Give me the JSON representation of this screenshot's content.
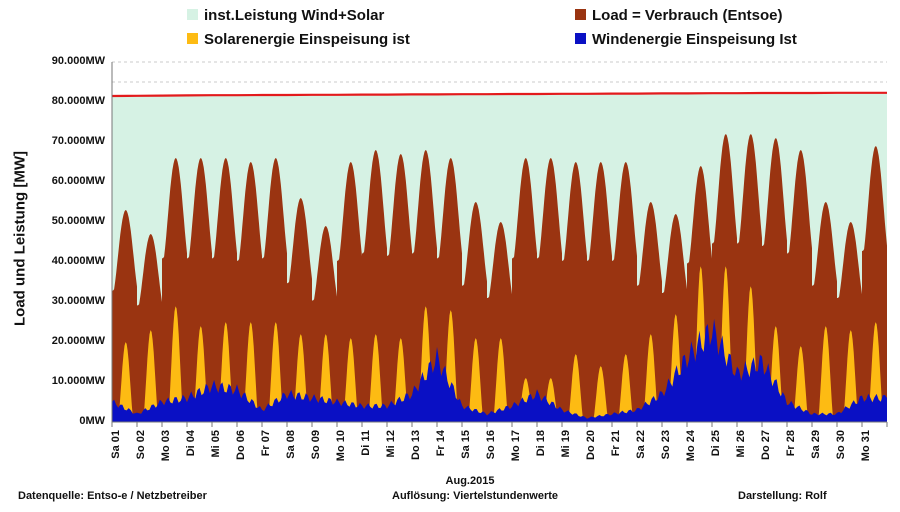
{
  "legend": [
    {
      "label": "inst.Leistung Wind+Solar",
      "color": "#d6f2e4"
    },
    {
      "label": "Load =  Verbrauch (Entsoe)",
      "color": "#9a3411"
    },
    {
      "label": "Solarenergie Einspeisung ist",
      "color": "#fdbb13"
    },
    {
      "label": "Windenergie Einspeisung Ist",
      "color": "#0a10c4"
    }
  ],
  "footer": {
    "source": "Datenquelle:  Entso-e  / Netzbetreiber",
    "resolution": "Auflösung:  Viertelstundenwerte",
    "author": "Darstellung: Rolf"
  },
  "chart_data": {
    "type": "area",
    "title": "",
    "xlabel": "Aug.2015",
    "ylabel": "Load und Leistung  [MW]",
    "ylim": [
      0,
      90000
    ],
    "yticks": [
      "0MW",
      "10.000MW",
      "20.000MW",
      "30.000MW",
      "40.000MW",
      "50.000MW",
      "60.000MW",
      "70.000MW",
      "80.000MW",
      "90.000MW"
    ],
    "categories": [
      "Sa 01",
      "So 02",
      "Mo 03",
      "Di 04",
      "Mi 05",
      "Do 06",
      "Fr 07",
      "Sa 08",
      "So 09",
      "Mo 10",
      "Di 11",
      "Mi 12",
      "Do 13",
      "Fr 14",
      "Sa 15",
      "So 16",
      "Mo 17",
      "Di 18",
      "Mi 19",
      "Do 20",
      "Fr 21",
      "Sa 22",
      "So 23",
      "Mo 24",
      "Di 25",
      "Mi 26",
      "Do 27",
      "Fr 28",
      "Sa 29",
      "So 30",
      "Mo 31"
    ],
    "series": [
      {
        "name": "inst.Leistung Wind+Solar",
        "values": [
          81500,
          81550,
          81600,
          81650,
          81700,
          81700,
          81750,
          81750,
          81800,
          81800,
          81850,
          81850,
          81900,
          81900,
          81950,
          81950,
          82000,
          82000,
          82050,
          82050,
          82100,
          82100,
          82150,
          82150,
          82200,
          82200,
          82250,
          82250,
          82250,
          82300,
          82300
        ]
      },
      {
        "name": "Load =  Verbrauch (Entsoe)",
        "values": [
          53000,
          47000,
          66000,
          66000,
          66000,
          65000,
          66000,
          56000,
          49000,
          65000,
          68000,
          67000,
          68000,
          66000,
          55000,
          50000,
          66000,
          66000,
          65000,
          65000,
          65000,
          55000,
          52000,
          64000,
          72000,
          72000,
          71000,
          68000,
          55000,
          50000,
          69000
        ]
      },
      {
        "name": "Solarenergie Einspeisung ist",
        "values": [
          20000,
          23000,
          29000,
          24000,
          25000,
          25000,
          25000,
          22000,
          22000,
          21000,
          22000,
          21000,
          29000,
          28000,
          21000,
          21000,
          11000,
          11000,
          17000,
          14000,
          17000,
          22000,
          27000,
          39000,
          39000,
          34000,
          24000,
          19000,
          24000,
          23000,
          25000
        ]
      },
      {
        "name": "Windenergie Einspeisung Ist",
        "values": [
          5000,
          2000,
          5000,
          6000,
          9000,
          8000,
          3000,
          7000,
          6000,
          5000,
          4000,
          4000,
          7000,
          16000,
          4000,
          2000,
          4000,
          7000,
          3000,
          1000,
          2000,
          3000,
          7000,
          16000,
          23000,
          12000,
          15000,
          5000,
          2000,
          2000,
          6000
        ]
      }
    ]
  }
}
